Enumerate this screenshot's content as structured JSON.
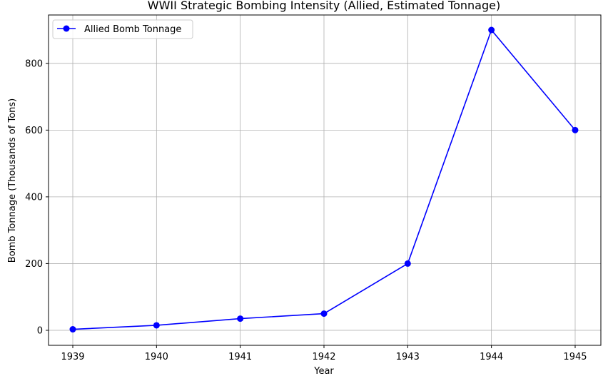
{
  "chart_data": {
    "type": "line",
    "title": "WWII Strategic Bombing Intensity (Allied, Estimated Tonnage)",
    "xlabel": "Year",
    "ylabel": "Bomb Tonnage (Thousands of Tons)",
    "x": [
      "1939",
      "1940",
      "1941",
      "1942",
      "1943",
      "1944",
      "1945"
    ],
    "series": [
      {
        "name": "Allied Bomb Tonnage",
        "values": [
          3,
          15,
          35,
          50,
          200,
          900,
          600
        ],
        "color": "#0000ff",
        "marker": "circle"
      }
    ],
    "yticks": [
      "0",
      "200",
      "400",
      "600",
      "800"
    ],
    "ylim": [
      -45,
      945
    ],
    "grid": true,
    "legend_position": "top-left"
  }
}
